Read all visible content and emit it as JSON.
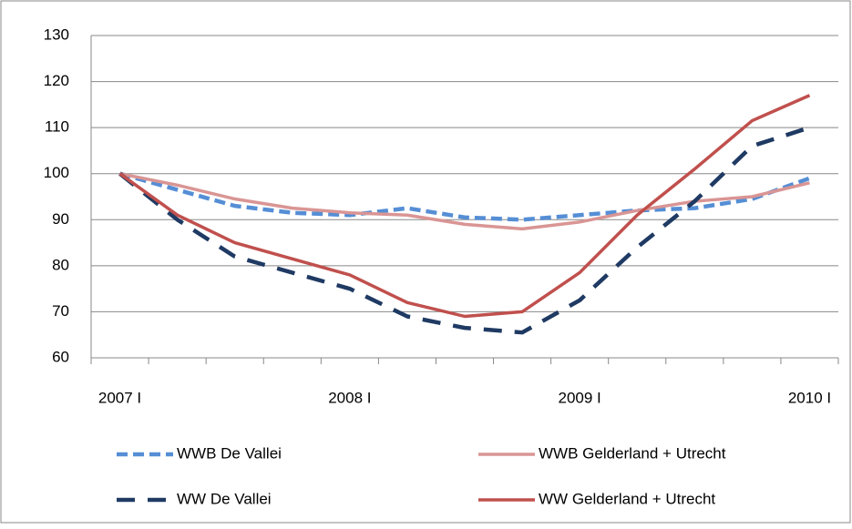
{
  "chart_data": {
    "type": "line",
    "categories": [
      "2007 I",
      null,
      null,
      null,
      "2008 I",
      null,
      null,
      null,
      "2009 I",
      null,
      null,
      null,
      "2010 I"
    ],
    "series": [
      {
        "name": "WWB De Vallei",
        "color": "#558ed5",
        "dashed": true,
        "values": [
          100,
          96.5,
          93,
          91.5,
          91,
          92.5,
          90.5,
          90,
          91,
          92,
          92.5,
          94.5,
          99
        ]
      },
      {
        "name": "WWB Gelderland + Utrecht",
        "color": "#d99594",
        "dashed": false,
        "values": [
          100,
          97.5,
          94.5,
          92.5,
          91.5,
          91,
          89,
          88,
          89.5,
          92,
          94,
          95,
          98
        ]
      },
      {
        "name": "WW De Vallei",
        "color": "#1f3a63",
        "dashed": true,
        "values": [
          100,
          90,
          82,
          78.5,
          75,
          69,
          66.5,
          65.5,
          72.5,
          84,
          94,
          106,
          110
        ]
      },
      {
        "name": "WW Gelderland + Utrecht",
        "color": "#c0504d",
        "dashed": false,
        "values": [
          100,
          91,
          85,
          81.5,
          78,
          72,
          69,
          70,
          78.5,
          91,
          101,
          111.5,
          117
        ]
      }
    ],
    "ylim": [
      60,
      130
    ],
    "yticks": [
      60,
      70,
      80,
      90,
      100,
      110,
      120,
      130
    ],
    "grid": true,
    "legend": "bottom"
  }
}
